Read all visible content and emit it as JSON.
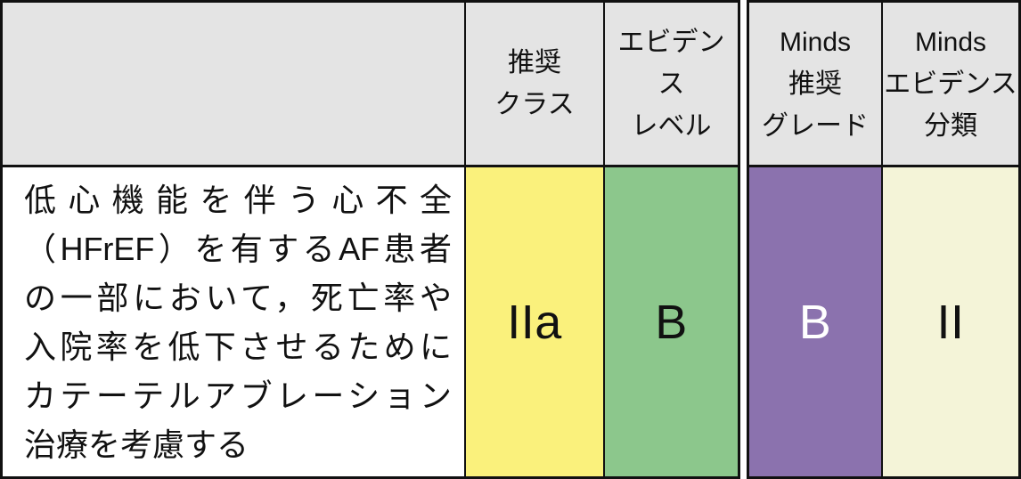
{
  "table": {
    "header": {
      "statement_col_label": "",
      "rec_class_label": [
        "推奨",
        "クラス"
      ],
      "evidence_level_label": [
        "エビデンス",
        "レベル"
      ],
      "minds_grade_label": [
        "Minds",
        "推奨",
        "グレード"
      ],
      "minds_evidence_label": [
        "Minds",
        "エビデンス",
        "分類"
      ]
    },
    "row": {
      "statement_lines": [
        "低心機能を伴う心不全",
        "（HFrEF）を有するAF患者",
        "の一部において，死亡率や",
        "入院率を低下させるために",
        "カテーテルアブレーション",
        "治療を考慮する"
      ],
      "rec_class": "IIa",
      "evidence_level": "B",
      "minds_grade": "B",
      "minds_evidence": "II"
    },
    "colors": {
      "header_bg": "#e4e4e4",
      "rec_class_bg": "#faf17c",
      "evidence_level_bg": "#8cc78c",
      "minds_grade_bg": "#8b72ae",
      "minds_grade_text": "#ffffff",
      "minds_evidence_bg": "#f4f4d8",
      "statement_bg": "#ffffff",
      "border": "#111111"
    }
  }
}
